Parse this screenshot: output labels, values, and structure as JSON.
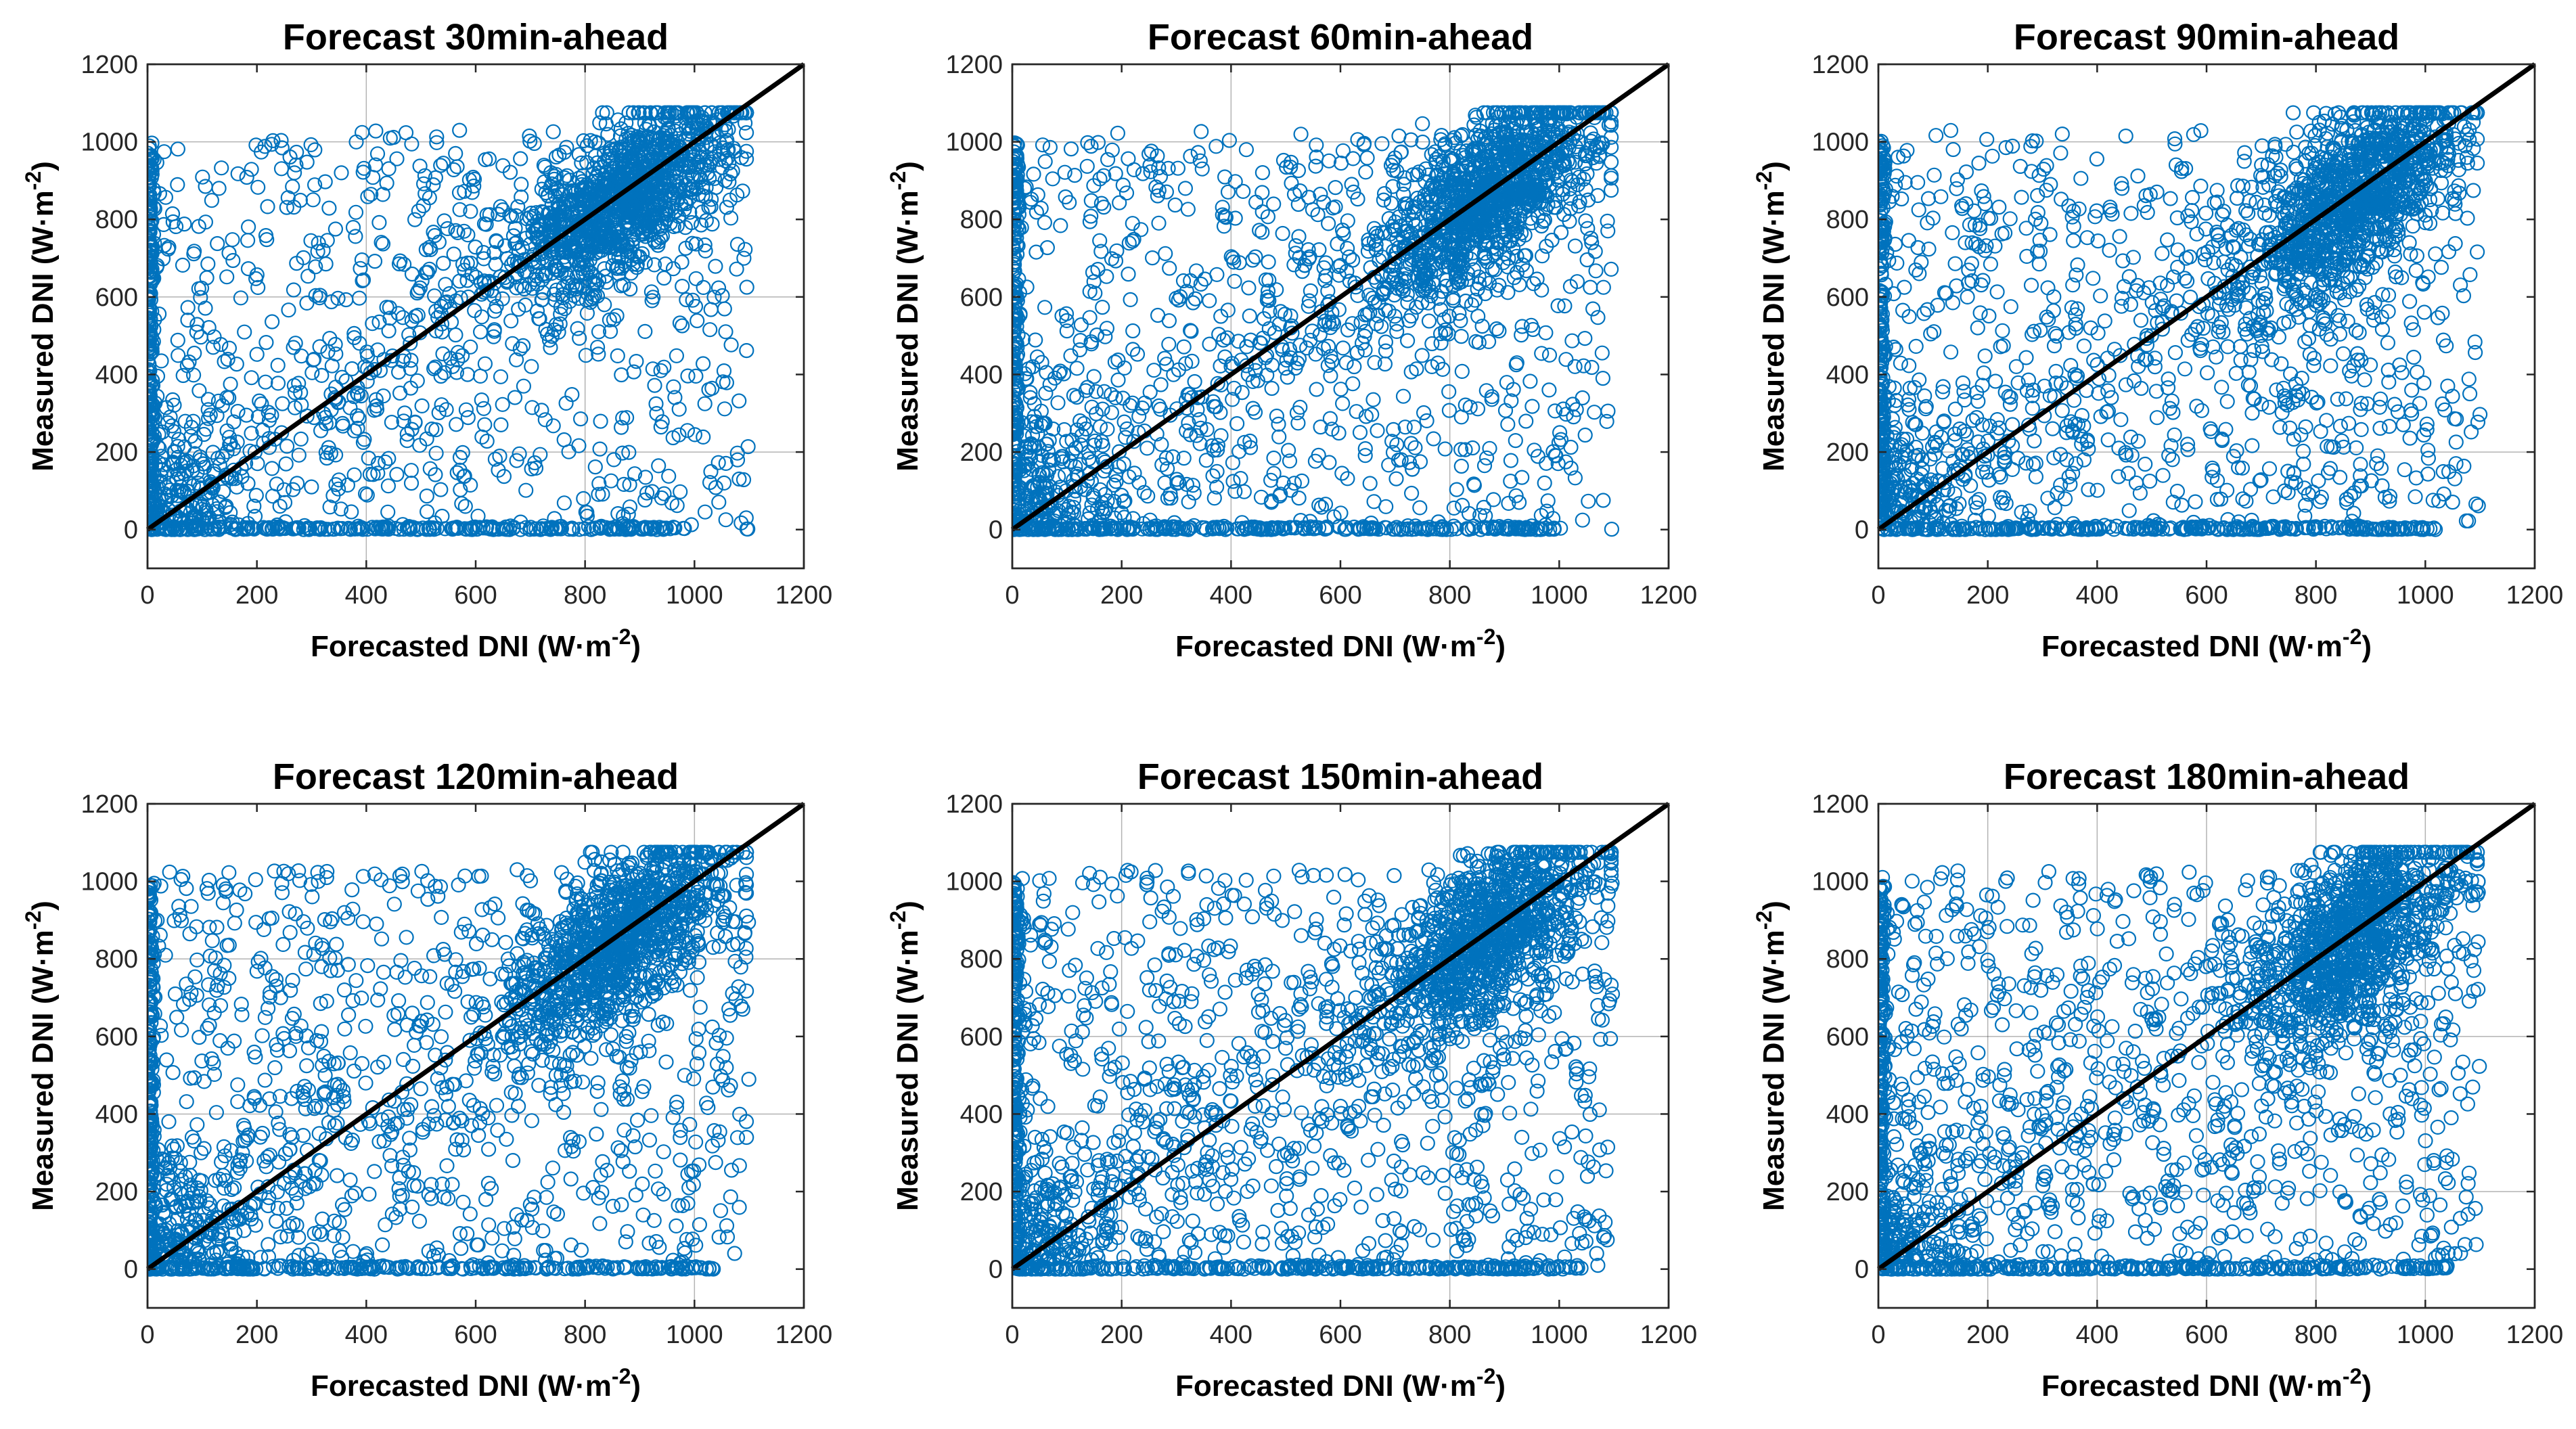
{
  "figure": {
    "description_free": true
  },
  "chart_data": [
    {
      "type": "scatter",
      "title": "Forecast 30min-ahead",
      "xlabel": "Forecasted DNI (W·m",
      "xlabel_sup": "-2",
      "xlabel_close": ")",
      "ylabel": "Measured DNI (W·m",
      "ylabel_sup": "-2",
      "ylabel_close": ")",
      "xlim": [
        0,
        1200
      ],
      "ylim": [
        -100,
        1200
      ],
      "xticks": [
        0,
        200,
        400,
        600,
        800,
        1000,
        1200
      ],
      "yticks": [
        0,
        200,
        400,
        600,
        800,
        1000,
        1200
      ],
      "xgrid": [
        400,
        800
      ],
      "ygrid": [
        200,
        600,
        1000
      ],
      "reference_line": {
        "from": [
          0,
          0
        ],
        "to": [
          1200,
          1200
        ],
        "color": "#000000"
      },
      "marker_color": "#0072BD",
      "marker": "circle",
      "n_points": 2600,
      "seed": 11,
      "spread": 0.55
    },
    {
      "type": "scatter",
      "title": "Forecast 60min-ahead",
      "xlabel": "Forecasted DNI (W·m",
      "xlabel_sup": "-2",
      "xlabel_close": ")",
      "ylabel": "Measured DNI (W·m",
      "ylabel_sup": "-2",
      "ylabel_close": ")",
      "xlim": [
        0,
        1200
      ],
      "ylim": [
        -100,
        1200
      ],
      "xticks": [
        0,
        200,
        400,
        600,
        800,
        1000,
        1200
      ],
      "yticks": [
        0,
        200,
        400,
        600,
        800,
        1000,
        1200
      ],
      "xgrid": [
        400,
        800
      ],
      "ygrid": [
        1000
      ],
      "reference_line": {
        "from": [
          0,
          0
        ],
        "to": [
          1200,
          1200
        ],
        "color": "#000000"
      },
      "marker_color": "#0072BD",
      "marker": "circle",
      "n_points": 2600,
      "seed": 23,
      "spread": 0.7
    },
    {
      "type": "scatter",
      "title": "Forecast 90min-ahead",
      "xlabel": "Forecasted DNI (W·m",
      "xlabel_sup": "-2",
      "xlabel_close": ")",
      "ylabel": "Measured DNI (W·m",
      "ylabel_sup": "-2",
      "ylabel_close": ")",
      "xlim": [
        0,
        1200
      ],
      "ylim": [
        -100,
        1200
      ],
      "xticks": [
        0,
        200,
        400,
        600,
        800,
        1000,
        1200
      ],
      "yticks": [
        0,
        200,
        400,
        600,
        800,
        1000,
        1200
      ],
      "xgrid": [],
      "ygrid": [
        200,
        1000
      ],
      "reference_line": {
        "from": [
          0,
          0
        ],
        "to": [
          1200,
          1200
        ],
        "color": "#000000"
      },
      "marker_color": "#0072BD",
      "marker": "circle",
      "n_points": 2600,
      "seed": 37,
      "spread": 0.8
    },
    {
      "type": "scatter",
      "title": "Forecast 120min-ahead",
      "xlabel": "Forecasted DNI (W·m",
      "xlabel_sup": "-2",
      "xlabel_close": ")",
      "ylabel": "Measured DNI (W·m",
      "ylabel_sup": "-2",
      "ylabel_close": ")",
      "xlim": [
        0,
        1200
      ],
      "ylim": [
        -100,
        1200
      ],
      "xticks": [
        0,
        200,
        400,
        600,
        800,
        1000,
        1200
      ],
      "yticks": [
        0,
        200,
        400,
        600,
        800,
        1000,
        1200
      ],
      "xgrid": [
        1000
      ],
      "ygrid": [
        400,
        800
      ],
      "reference_line": {
        "from": [
          0,
          0
        ],
        "to": [
          1200,
          1200
        ],
        "color": "#000000"
      },
      "marker_color": "#0072BD",
      "marker": "circle",
      "n_points": 2600,
      "seed": 41,
      "spread": 0.9
    },
    {
      "type": "scatter",
      "title": "Forecast 150min-ahead",
      "xlabel": "Forecasted DNI (W·m",
      "xlabel_sup": "-2",
      "xlabel_close": ")",
      "ylabel": "Measured DNI (W·m",
      "ylabel_sup": "-2",
      "ylabel_close": ")",
      "xlim": [
        0,
        1200
      ],
      "ylim": [
        -100,
        1200
      ],
      "xticks": [
        0,
        200,
        400,
        600,
        800,
        1000,
        1200
      ],
      "yticks": [
        0,
        200,
        400,
        600,
        800,
        1000,
        1200
      ],
      "xgrid": [
        200,
        800
      ],
      "ygrid": [
        400,
        600
      ],
      "reference_line": {
        "from": [
          0,
          0
        ],
        "to": [
          1200,
          1200
        ],
        "color": "#000000"
      },
      "marker_color": "#0072BD",
      "marker": "circle",
      "n_points": 2600,
      "seed": 53,
      "spread": 0.95
    },
    {
      "type": "scatter",
      "title": "Forecast 180min-ahead",
      "xlabel": "Forecasted DNI (W·m",
      "xlabel_sup": "-2",
      "xlabel_close": ")",
      "ylabel": "Measured DNI (W·m",
      "ylabel_sup": "-2",
      "ylabel_close": ")",
      "xlim": [
        0,
        1200
      ],
      "ylim": [
        -100,
        1200
      ],
      "xticks": [
        0,
        200,
        400,
        600,
        800,
        1000,
        1200
      ],
      "yticks": [
        0,
        200,
        400,
        600,
        800,
        1000,
        1200
      ],
      "xgrid": [
        200,
        400,
        600,
        800,
        1000
      ],
      "ygrid": [
        200,
        600
      ],
      "reference_line": {
        "from": [
          0,
          0
        ],
        "to": [
          1200,
          1200
        ],
        "color": "#000000"
      },
      "marker_color": "#0072BD",
      "marker": "circle",
      "n_points": 2600,
      "seed": 67,
      "spread": 1.0
    }
  ]
}
